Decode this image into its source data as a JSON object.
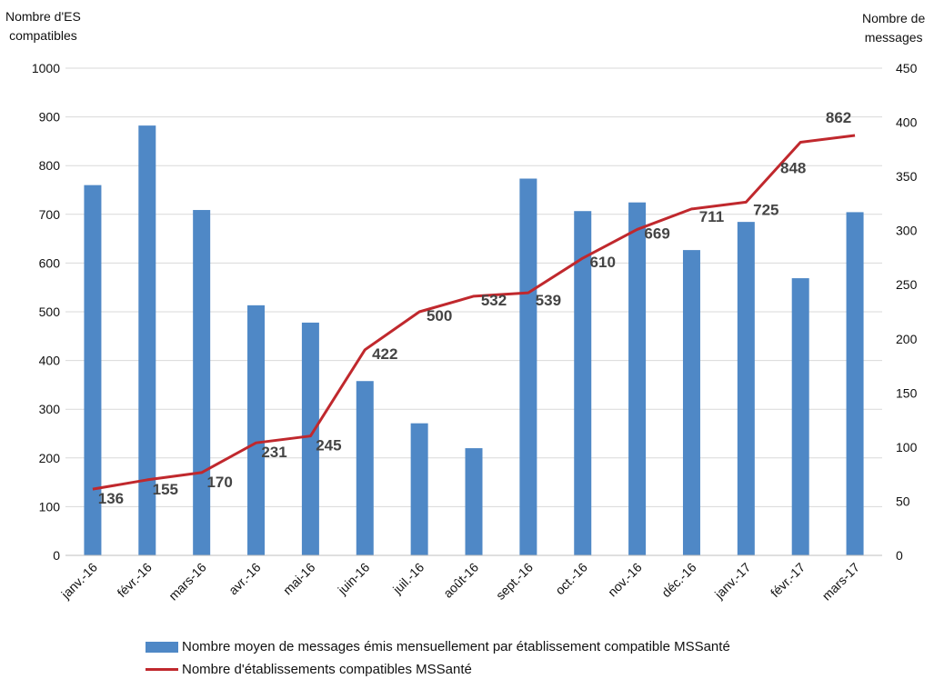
{
  "chart_data": {
    "type": "bar",
    "left_axis_title": [
      "Nombre d'ES",
      "compatibles"
    ],
    "right_axis_title": [
      "Nombre de",
      "messages"
    ],
    "categories": [
      "janv.-16",
      "févr.-16",
      "mars-16",
      "avr.-16",
      "mai-16",
      "juin-16",
      "juil.-16",
      "août-16",
      "sept.-16",
      "oct.-16",
      "nov.-16",
      "déc.-16",
      "janv.-17",
      "févr.-17",
      "mars-17"
    ],
    "left_ylim": [
      0,
      1000
    ],
    "left_ticks": [
      "0",
      "100",
      "200",
      "300",
      "400",
      "500",
      "600",
      "700",
      "800",
      "900",
      "1000"
    ],
    "right_ylim": [
      0,
      450
    ],
    "right_ticks": [
      "0",
      "50",
      "100",
      "150",
      "200",
      "250",
      "300",
      "350",
      "400",
      "450"
    ],
    "grid": true,
    "legend_position": "bottom",
    "series": [
      {
        "name": "Nombre moyen de messages émis mensuellement par établissement compatible MSSanté",
        "type": "bar",
        "axis": "right",
        "color": "#4f88c6",
        "values": [
          342,
          397,
          319,
          231,
          215,
          161,
          122,
          99,
          348,
          318,
          326,
          282,
          308,
          256,
          317
        ]
      },
      {
        "name": "Nombre d'établissements compatibles MSSanté",
        "type": "line",
        "axis": "left",
        "color": "#c0282d",
        "values": [
          136,
          155,
          170,
          231,
          245,
          422,
          500,
          532,
          539,
          610,
          669,
          711,
          725,
          848,
          862
        ],
        "labels": [
          "136",
          "155",
          "170",
          "231",
          "245",
          "422",
          "500",
          "532",
          "539",
          "610",
          "669",
          "711",
          "725",
          "848",
          "862"
        ]
      }
    ]
  }
}
